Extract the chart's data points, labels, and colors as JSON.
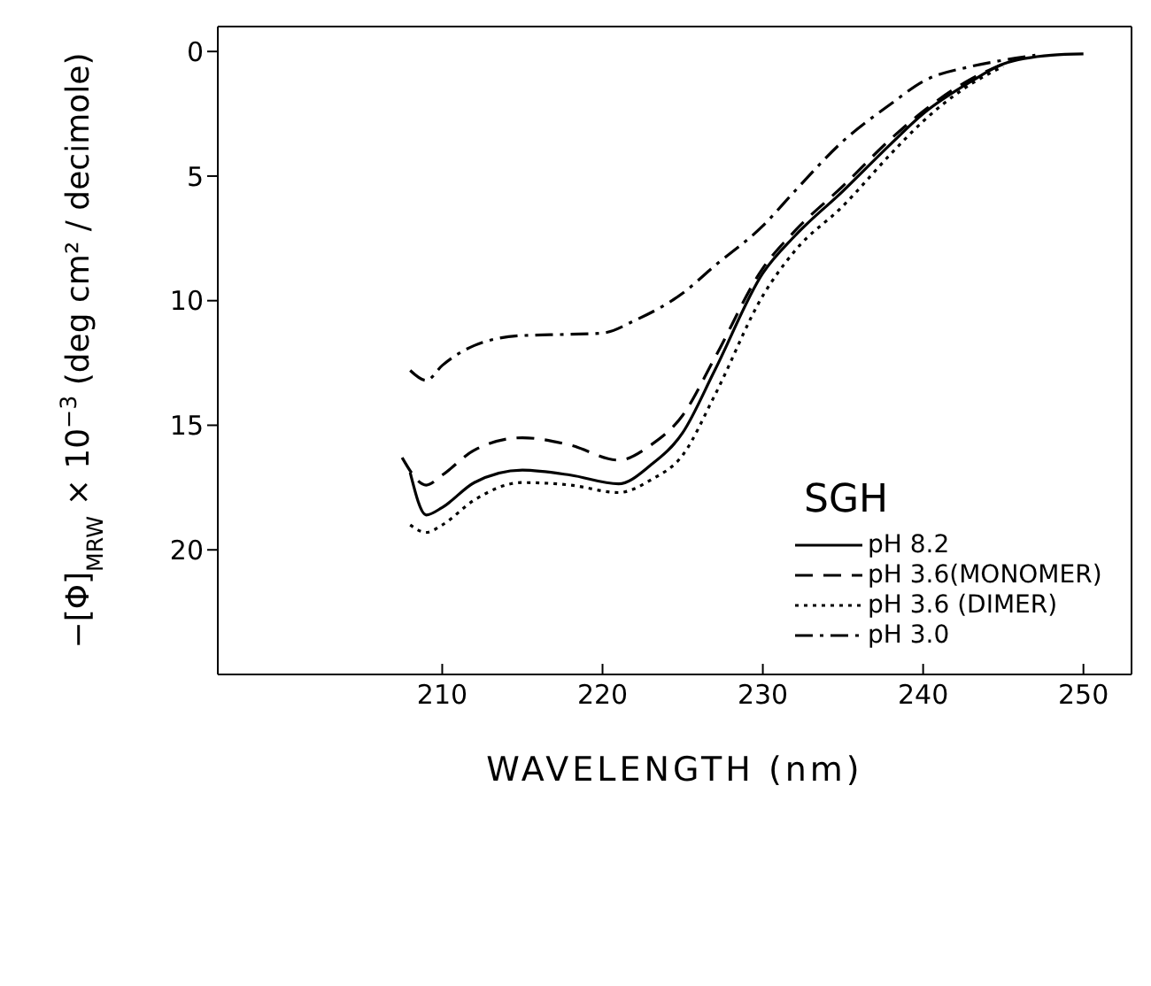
{
  "chart_data": {
    "type": "line",
    "xlabel": "WAVELENGTH (nm)",
    "ylabel": "−[Φ]$_{MRW}$ × 10$^{−3}$ (deg cm² / decimole)",
    "legend_title": "SGH",
    "legend": "right",
    "marker": "none",
    "xlim": [
      196,
      253
    ],
    "xticks": [
      210,
      220,
      230,
      240,
      250
    ],
    "ylim": [
      25,
      -1
    ],
    "yticks": [
      0,
      5,
      10,
      15,
      20
    ],
    "series": [
      {
        "name": "pH 8.2",
        "color": "#000000",
        "line_style": "solid",
        "x": [
          208,
          209,
          210,
          212,
          215,
          218,
          221,
          223,
          225,
          227,
          230,
          232,
          235,
          238,
          240,
          243,
          245,
          248,
          250
        ],
        "values": [
          16.9,
          18.6,
          18.3,
          17.3,
          16.8,
          17.0,
          17.35,
          16.6,
          15.3,
          12.8,
          8.9,
          7.4,
          5.6,
          3.7,
          2.5,
          1.2,
          0.5,
          0.15,
          0.1
        ]
      },
      {
        "name": "pH 3.6(MONOMER)",
        "color": "#000000",
        "line_style": "dashed",
        "x": [
          207.5,
          209,
          210,
          212,
          215,
          218,
          221,
          223,
          225,
          227,
          230,
          232,
          235,
          238,
          240,
          243,
          245
        ],
        "values": [
          16.3,
          17.4,
          17.0,
          16.0,
          15.5,
          15.8,
          16.4,
          15.8,
          14.6,
          12.3,
          8.7,
          7.2,
          5.4,
          3.5,
          2.4,
          1.1,
          0.5
        ]
      },
      {
        "name": "pH 3.6 (DIMER)",
        "color": "#000000",
        "line_style": "dotted",
        "x": [
          208,
          209,
          210,
          212,
          215,
          218,
          221,
          223,
          225,
          227,
          230,
          232,
          235,
          238,
          240,
          243,
          245
        ],
        "values": [
          19.0,
          19.3,
          19.0,
          18.0,
          17.3,
          17.4,
          17.7,
          17.2,
          16.2,
          13.8,
          9.8,
          8.0,
          6.2,
          4.1,
          2.8,
          1.3,
          0.6
        ]
      },
      {
        "name": "pH 3.0",
        "color": "#000000",
        "line_style": "dashdot",
        "x": [
          208,
          209,
          210,
          212,
          215,
          218,
          220,
          222,
          225,
          227,
          230,
          232,
          235,
          238,
          240,
          243,
          245,
          247
        ],
        "values": [
          12.8,
          13.2,
          12.6,
          11.8,
          11.4,
          11.35,
          11.3,
          10.8,
          9.7,
          8.6,
          7.0,
          5.6,
          3.6,
          2.1,
          1.2,
          0.6,
          0.35,
          0.15
        ]
      }
    ]
  }
}
